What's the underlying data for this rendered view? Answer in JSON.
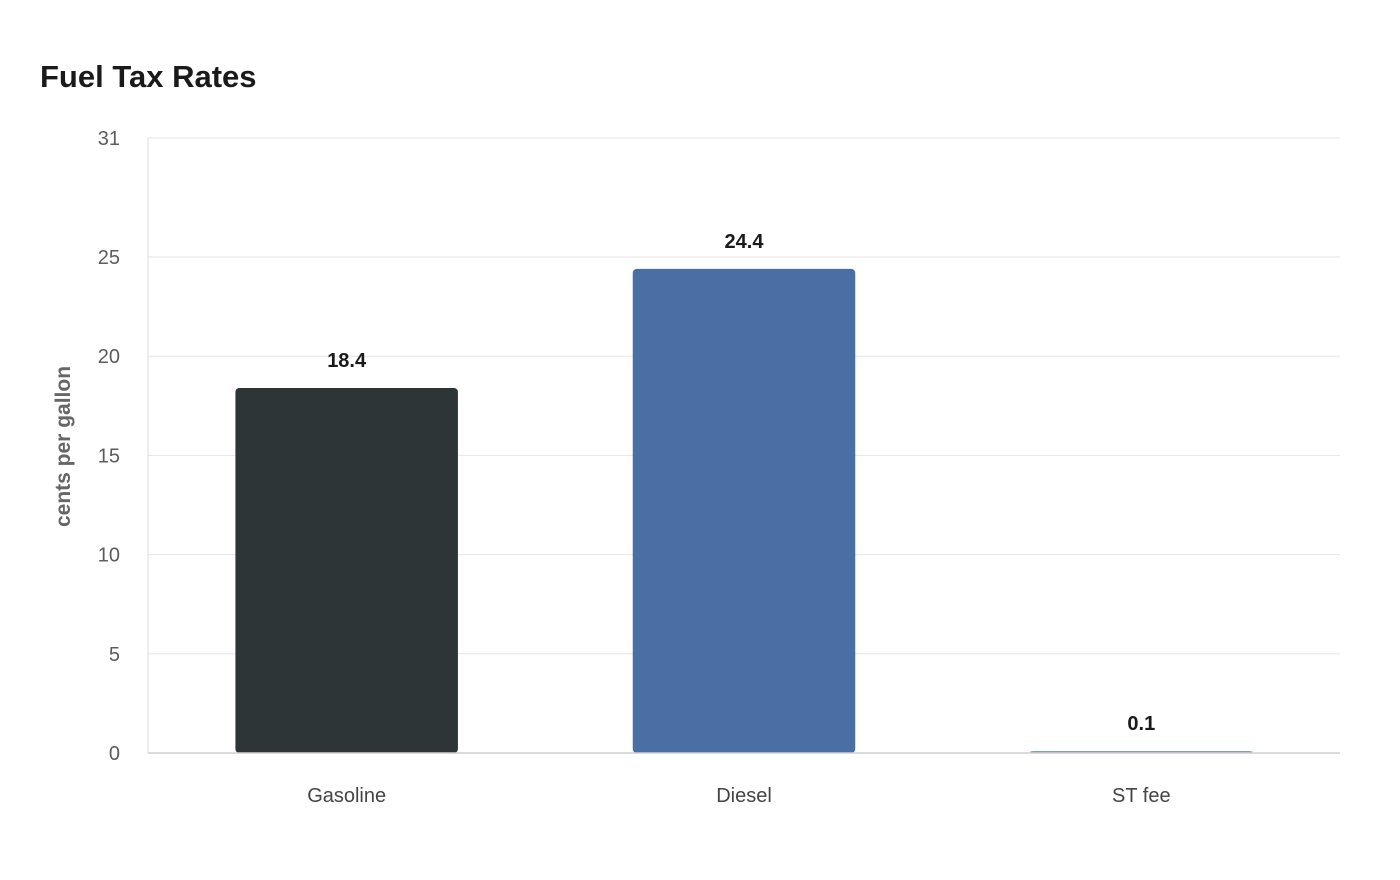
{
  "chart_data": {
    "type": "bar",
    "title": "Fuel Tax Rates",
    "xlabel": "",
    "ylabel": "cents per gallon",
    "categories": [
      "Gasoline",
      "Diesel",
      "ST fee"
    ],
    "values": [
      18.4,
      24.4,
      0.1
    ],
    "data_labels": [
      "18.4",
      "24.4",
      "0.1"
    ],
    "colors": [
      "#2e3537",
      "#4a6fa5",
      "#7f9ccb"
    ],
    "ylim": [
      0,
      31
    ],
    "yticks": [
      0,
      5,
      10,
      15,
      20,
      25,
      31
    ],
    "grid": true,
    "legend": "none"
  }
}
